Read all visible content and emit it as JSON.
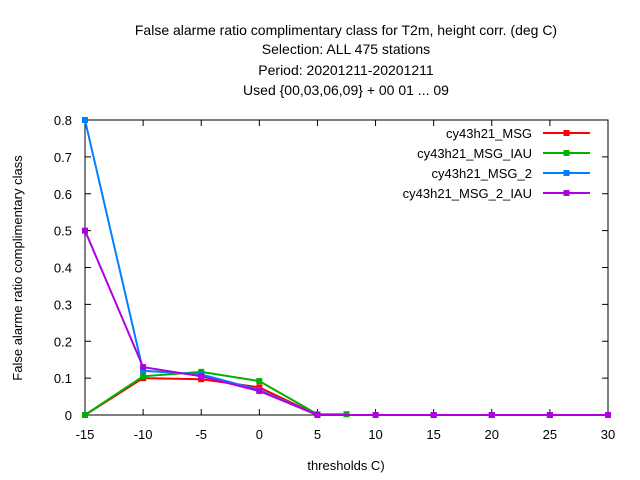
{
  "chart_data": {
    "type": "line",
    "title_lines": [
      "False alarme ratio complimentary class  for T2m, height corr. (deg C)",
      "Selection: ALL    475 stations",
      "Period: 20201211-20201211",
      "Used {00,03,06,09} + 00 01 ... 09"
    ],
    "xlabel": "thresholds C)",
    "ylabel": "False alarme ratio complimentary class",
    "xlim": [
      -15,
      30
    ],
    "ylim": [
      0,
      0.8
    ],
    "xticks": [
      -15,
      -10,
      -5,
      0,
      5,
      10,
      15,
      20,
      25,
      30
    ],
    "yticks": [
      0,
      0.1,
      0.2,
      0.3,
      0.4,
      0.5,
      0.6,
      0.7,
      0.8
    ],
    "ytick_labels": [
      "0",
      "0.1",
      "0.2",
      "0.3",
      "0.4",
      "0.5",
      "0.6",
      "0.7",
      "0.8"
    ],
    "legend_position": "top-right",
    "grid": false,
    "series": [
      {
        "name": "cy43h21_MSG",
        "color": "#ff0000",
        "x": [
          -15,
          -10,
          -5,
          0,
          5,
          10,
          15,
          20,
          25,
          30
        ],
        "y": [
          0.0,
          0.1,
          0.097,
          0.075,
          0.0,
          0.0,
          0.0,
          0.0,
          0.0,
          0.0
        ]
      },
      {
        "name": "cy43h21_MSG_IAU",
        "color": "#00b000",
        "x": [
          -15,
          -10,
          -5,
          0,
          5,
          7.5
        ],
        "y": [
          0.0,
          0.105,
          0.117,
          0.092,
          0.002,
          0.002
        ]
      },
      {
        "name": "cy43h21_MSG_2",
        "color": "#0080ff",
        "x": [
          -15,
          -10,
          -5,
          0,
          5,
          10,
          15,
          20,
          25,
          30
        ],
        "y": [
          0.8,
          0.12,
          0.11,
          0.068,
          0.0,
          0.0,
          0.0,
          0.0,
          0.0,
          0.0
        ]
      },
      {
        "name": "cy43h21_MSG_2_IAU",
        "color": "#b000e0",
        "x": [
          -15,
          -10,
          -5,
          0,
          5,
          10,
          15,
          20,
          25,
          30
        ],
        "y": [
          0.5,
          0.13,
          0.105,
          0.065,
          0.0,
          0.0,
          0.0,
          0.0,
          0.0,
          0.0
        ]
      }
    ]
  }
}
